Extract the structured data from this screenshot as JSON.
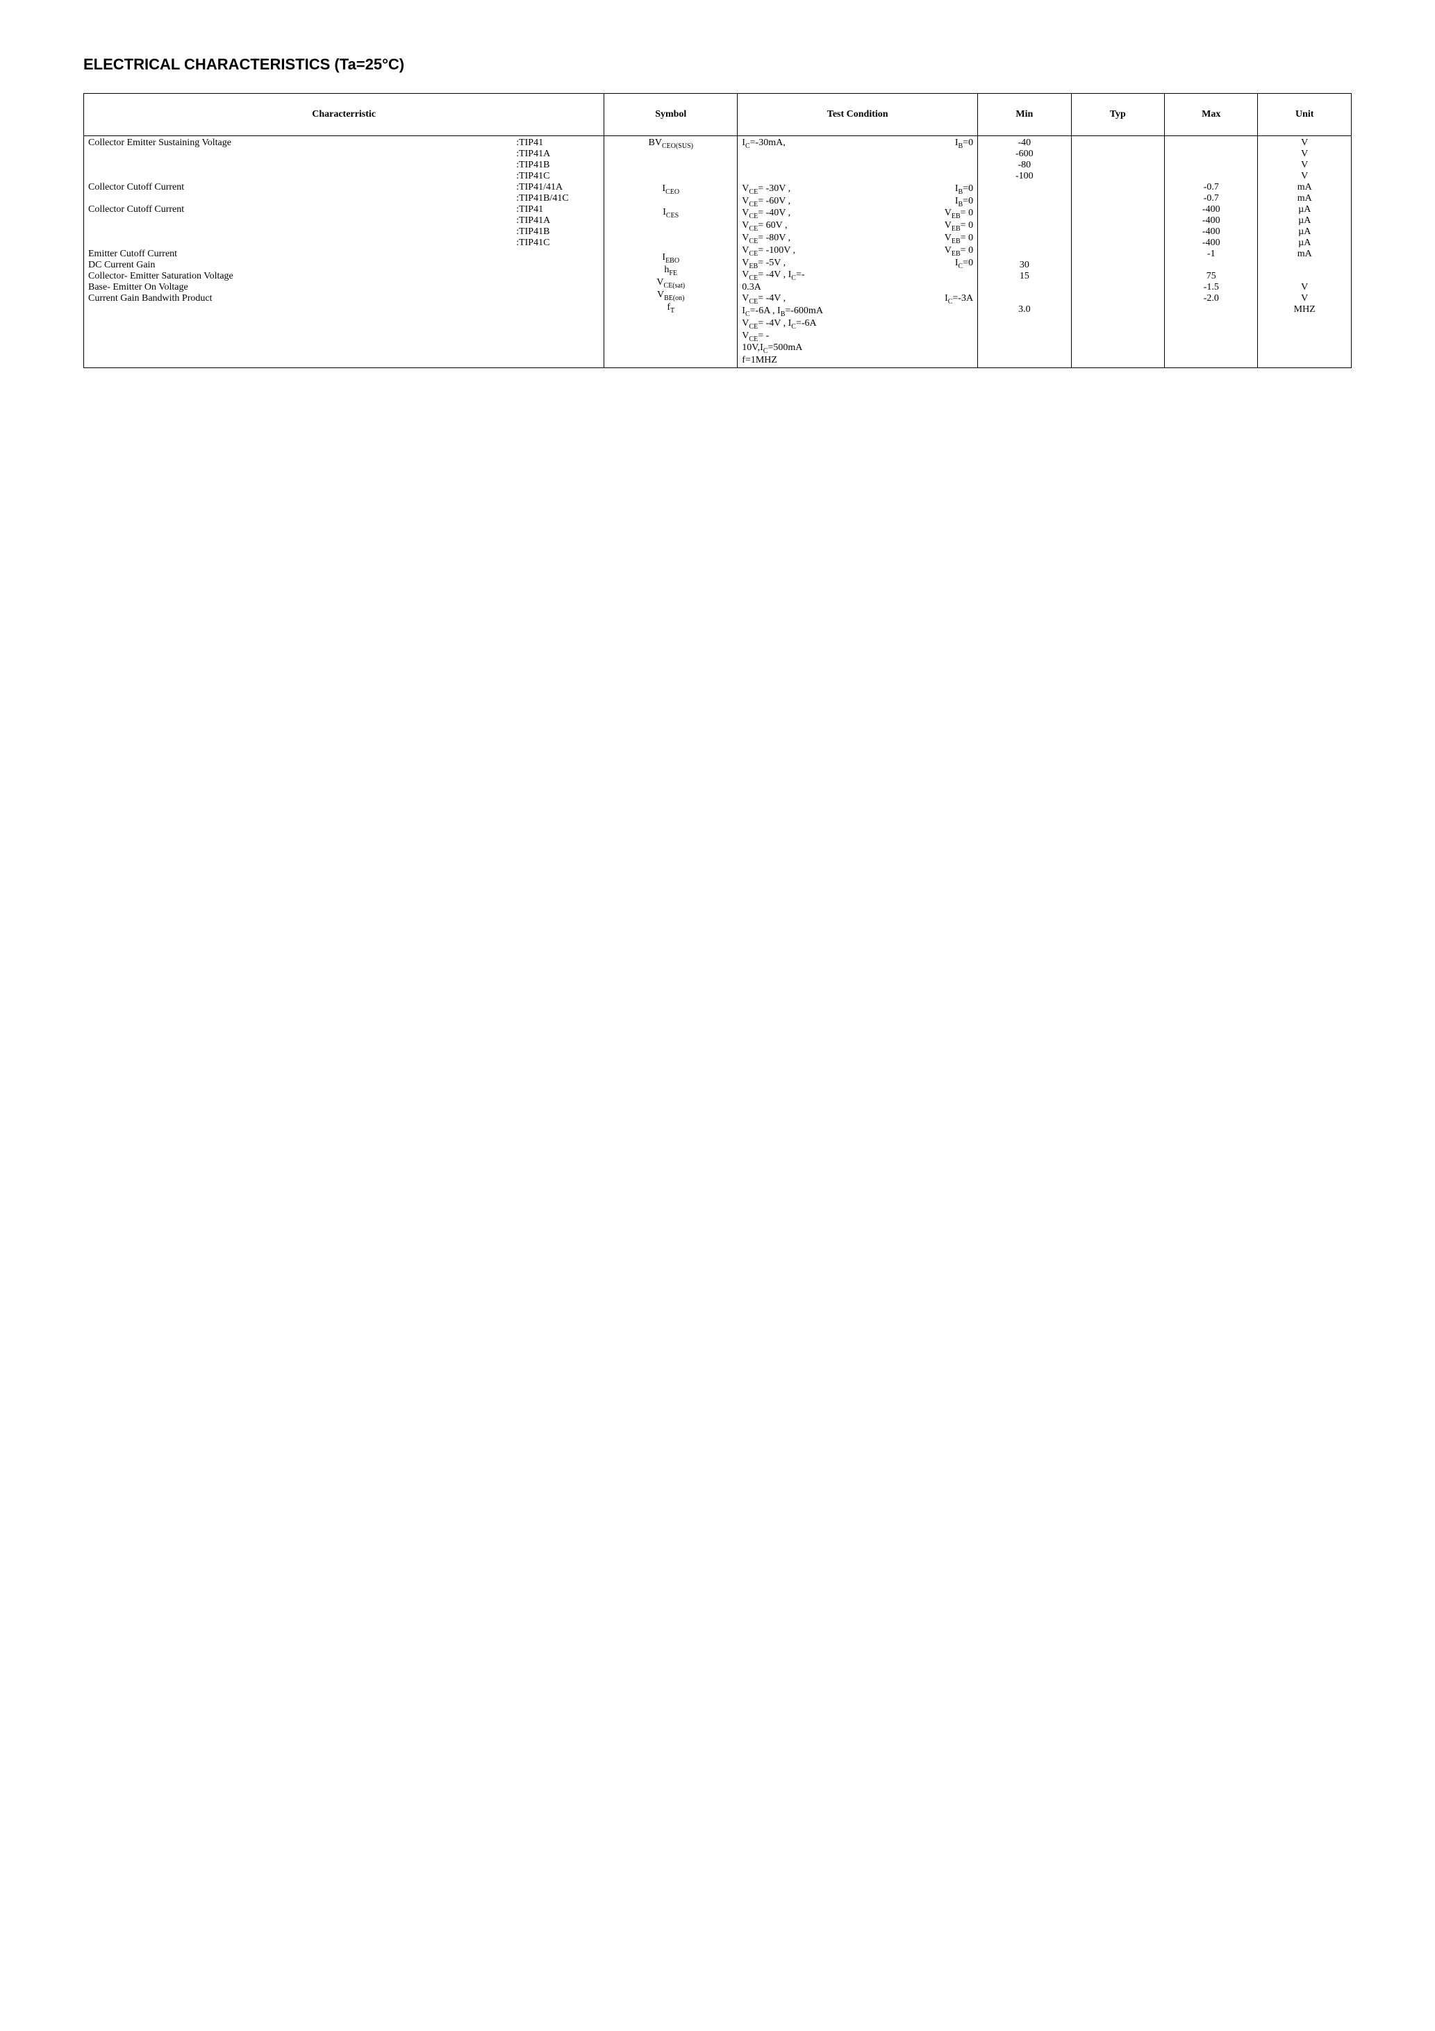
{
  "title": "ELECTRICAL CHARACTERISTICS (Ta=25°C)",
  "headers": {
    "characteristic": "Characterristic",
    "symbol": "Symbol",
    "test_condition": "Test Condition",
    "min": "Min",
    "typ": "Typ",
    "max": "Max",
    "unit": "Unit"
  },
  "rows": [
    {
      "name": "Collector Emitter Sustaining Voltage",
      "variants": [
        ":TIP41",
        ":TIP41A",
        ":TIP41B",
        ":TIP41C"
      ],
      "symbol_main": "BV",
      "symbol_sub": "CEO(SUS)",
      "conditions": [
        {
          "left": "Ic=-30mA,",
          "right": "IB=0"
        }
      ],
      "min": [
        "-40",
        "-600",
        "-80",
        "-100"
      ],
      "typ": [],
      "max": [],
      "unit": [
        "V",
        "V",
        "V",
        "V"
      ]
    },
    {
      "name": "Collector Cutoff Current",
      "variants": [
        ":TIP41/41A",
        ":TIP41B/41C"
      ],
      "symbol_main": "I",
      "symbol_sub": "CEO",
      "conditions": [
        {
          "left": "VCE= -30V ,",
          "right": "IB=0"
        },
        {
          "left": "VCE= -60V ,",
          "right": "IB=0"
        }
      ],
      "min": [],
      "typ": [],
      "max": [
        "-0.7",
        "-0.7"
      ],
      "unit": [
        "mA",
        "mA"
      ]
    },
    {
      "name": "Collector Cutoff Current",
      "variants": [
        ":TIP41",
        ":TIP41A",
        ":TIP41B",
        ":TIP41C"
      ],
      "symbol_main": "I",
      "symbol_sub": "CES",
      "conditions": [
        {
          "left": "VCE= -40V ,",
          "right": "VEB= 0"
        },
        {
          "left": "VCE= 60V ,",
          "right": "VEB= 0"
        },
        {
          "left": "VCE= -80V ,",
          "right": "VEB= 0"
        },
        {
          "left": "VCE= -100V ,",
          "right": "VEB= 0"
        }
      ],
      "min": [],
      "typ": [],
      "max": [
        "-400",
        "-400",
        "-400",
        "-400"
      ],
      "unit": [
        "µA",
        "µA",
        "µA",
        "µA"
      ]
    },
    {
      "name": "Emitter Cutoff Current",
      "variants": [],
      "symbol_main": "I",
      "symbol_sub": "EBO",
      "conditions": [
        {
          "left": "VEB= -5V ,",
          "right": "IC=0"
        }
      ],
      "min": [],
      "typ": [],
      "max": [
        "-1"
      ],
      "unit": [
        "mA"
      ]
    },
    {
      "name": "DC Current Gain",
      "variants": [],
      "symbol_main": "h",
      "symbol_sub": "FE",
      "conditions": [
        {
          "left": "VCE= -4V ,    IC=-",
          "right": ""
        },
        {
          "left": "0.3A",
          "right": ""
        }
      ],
      "min": [
        "30",
        "15"
      ],
      "typ": [],
      "max": [
        "",
        "75"
      ],
      "unit": []
    },
    {
      "name": "Collector- Emitter Saturation Voltage",
      "variants": [],
      "symbol_main": "V",
      "symbol_sub": "CE(sat)",
      "conditions": [
        {
          "left": "VCE= -4V ,",
          "right": "IC=-3A"
        }
      ],
      "min": [],
      "typ": [],
      "max": [
        "-1.5"
      ],
      "unit": [
        "V"
      ]
    },
    {
      "name": "Base- Emitter On Voltage",
      "variants": [],
      "symbol_main": "V",
      "symbol_sub": "BE(on)",
      "conditions": [
        {
          "left": "IC=-6A ,   IB=-600mA",
          "right": ""
        }
      ],
      "min": [],
      "typ": [],
      "max": [
        "-2.0"
      ],
      "unit": [
        "V"
      ]
    },
    {
      "name": "Current Gain Bandwith Product",
      "variants": [],
      "symbol_main": "f",
      "symbol_sub": "T",
      "conditions": [
        {
          "left": "VCE= -4V ,   IC=-6A",
          "right": ""
        },
        {
          "left": "VCE= -",
          "right": ""
        },
        {
          "left": "10V,IC=500mA",
          "right": ""
        },
        {
          "left": "f=1MHZ",
          "right": ""
        }
      ],
      "min": [
        "3.0"
      ],
      "typ": [],
      "max": [],
      "unit": [
        "MHZ"
      ]
    }
  ]
}
